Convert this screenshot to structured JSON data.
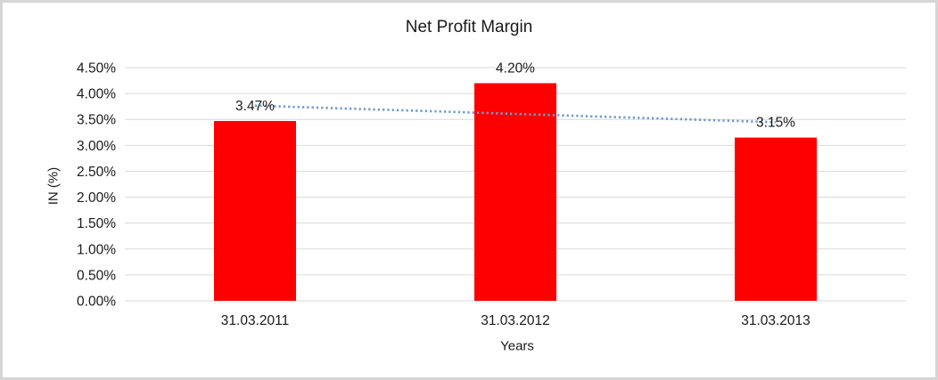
{
  "window": {
    "background_color": "#ffffff",
    "frame_border_color": "#d6d6d6"
  },
  "chart_data": {
    "type": "bar",
    "title": "Net Profit Margin",
    "xlabel": "Years",
    "ylabel": "IN (%)",
    "categories": [
      "31.03.2011",
      "31.03.2012",
      "31.03.2013"
    ],
    "values": [
      3.47,
      4.2,
      3.15
    ],
    "value_labels": [
      "3.47%",
      "4.20%",
      "3.15%"
    ],
    "y_ticks": [
      "0.00%",
      "0.50%",
      "1.00%",
      "1.50%",
      "2.00%",
      "2.50%",
      "3.00%",
      "3.50%",
      "4.00%",
      "4.50%"
    ],
    "ylim": [
      0,
      4.5
    ],
    "grid": "horizontal",
    "gridline_color": "#d9d9d9",
    "legend": "none",
    "bar_color": "#ff0000",
    "text_color": "#1a1a1a",
    "trendline": {
      "type": "linear",
      "style": "dotted",
      "color": "#6d9bd1",
      "endpoint_values": [
        3.77,
        3.45
      ]
    }
  }
}
